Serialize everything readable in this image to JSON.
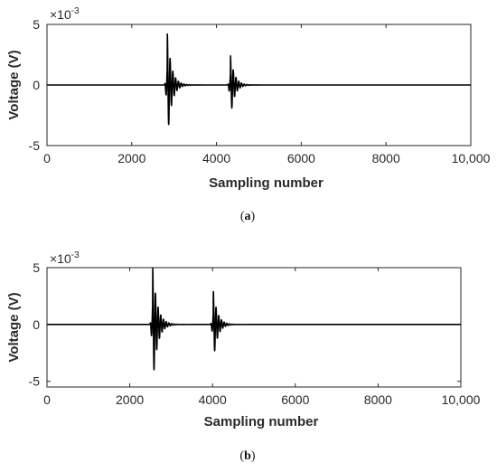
{
  "chart_data": [
    {
      "panel": "a",
      "type": "line",
      "caption_letter": "a",
      "xlabel": "Sampling number",
      "ylabel": "Voltage (V)",
      "y_multiplier": {
        "base": "×10",
        "exponent": "-3"
      },
      "xlim": [
        0,
        10000
      ],
      "ylim": [
        -5,
        5
      ],
      "x_ticks": [
        0,
        2000,
        4000,
        6000,
        8000,
        10000
      ],
      "x_tick_labels": [
        "0",
        "2000",
        "4000",
        "6000",
        "8000",
        "10,000"
      ],
      "y_ticks": [
        -5,
        0,
        5
      ],
      "y_tick_labels": [
        "-5",
        "0",
        "5"
      ],
      "grid": false,
      "series": [
        {
          "color": "#000000",
          "baseline": 0,
          "bursts": [
            {
              "center": 2840,
              "first_peak": 4.2,
              "min_peak": -4.5,
              "decay": 0.52,
              "spacing": 65,
              "cycles": 14
            },
            {
              "center": 4330,
              "first_peak": 2.5,
              "min_peak": -2.7,
              "decay": 0.5,
              "spacing": 65,
              "cycles": 13
            }
          ]
        }
      ]
    },
    {
      "panel": "b",
      "type": "line",
      "caption_letter": "b",
      "xlabel": "Sampling number",
      "ylabel": "Voltage (V)",
      "y_multiplier": {
        "base": "×10",
        "exponent": "-3"
      },
      "xlim": [
        0,
        10000
      ],
      "ylim": [
        -5.5,
        5
      ],
      "x_ticks": [
        0,
        2000,
        4000,
        6000,
        8000,
        10000
      ],
      "x_tick_labels": [
        "0",
        "2000",
        "4000",
        "6000",
        "8000",
        "10,000"
      ],
      "y_ticks": [
        -5,
        0,
        5
      ],
      "y_tick_labels": [
        "-5",
        "0",
        "5"
      ],
      "grid": false,
      "series": [
        {
          "color": "#000000",
          "baseline": 0,
          "bursts": [
            {
              "center": 2555,
              "first_peak": 5.0,
              "min_peak": -5.4,
              "decay": 0.55,
              "spacing": 65,
              "cycles": 14
            },
            {
              "center": 4020,
              "first_peak": 2.9,
              "min_peak": -3.2,
              "decay": 0.52,
              "spacing": 65,
              "cycles": 13
            }
          ]
        }
      ]
    }
  ]
}
